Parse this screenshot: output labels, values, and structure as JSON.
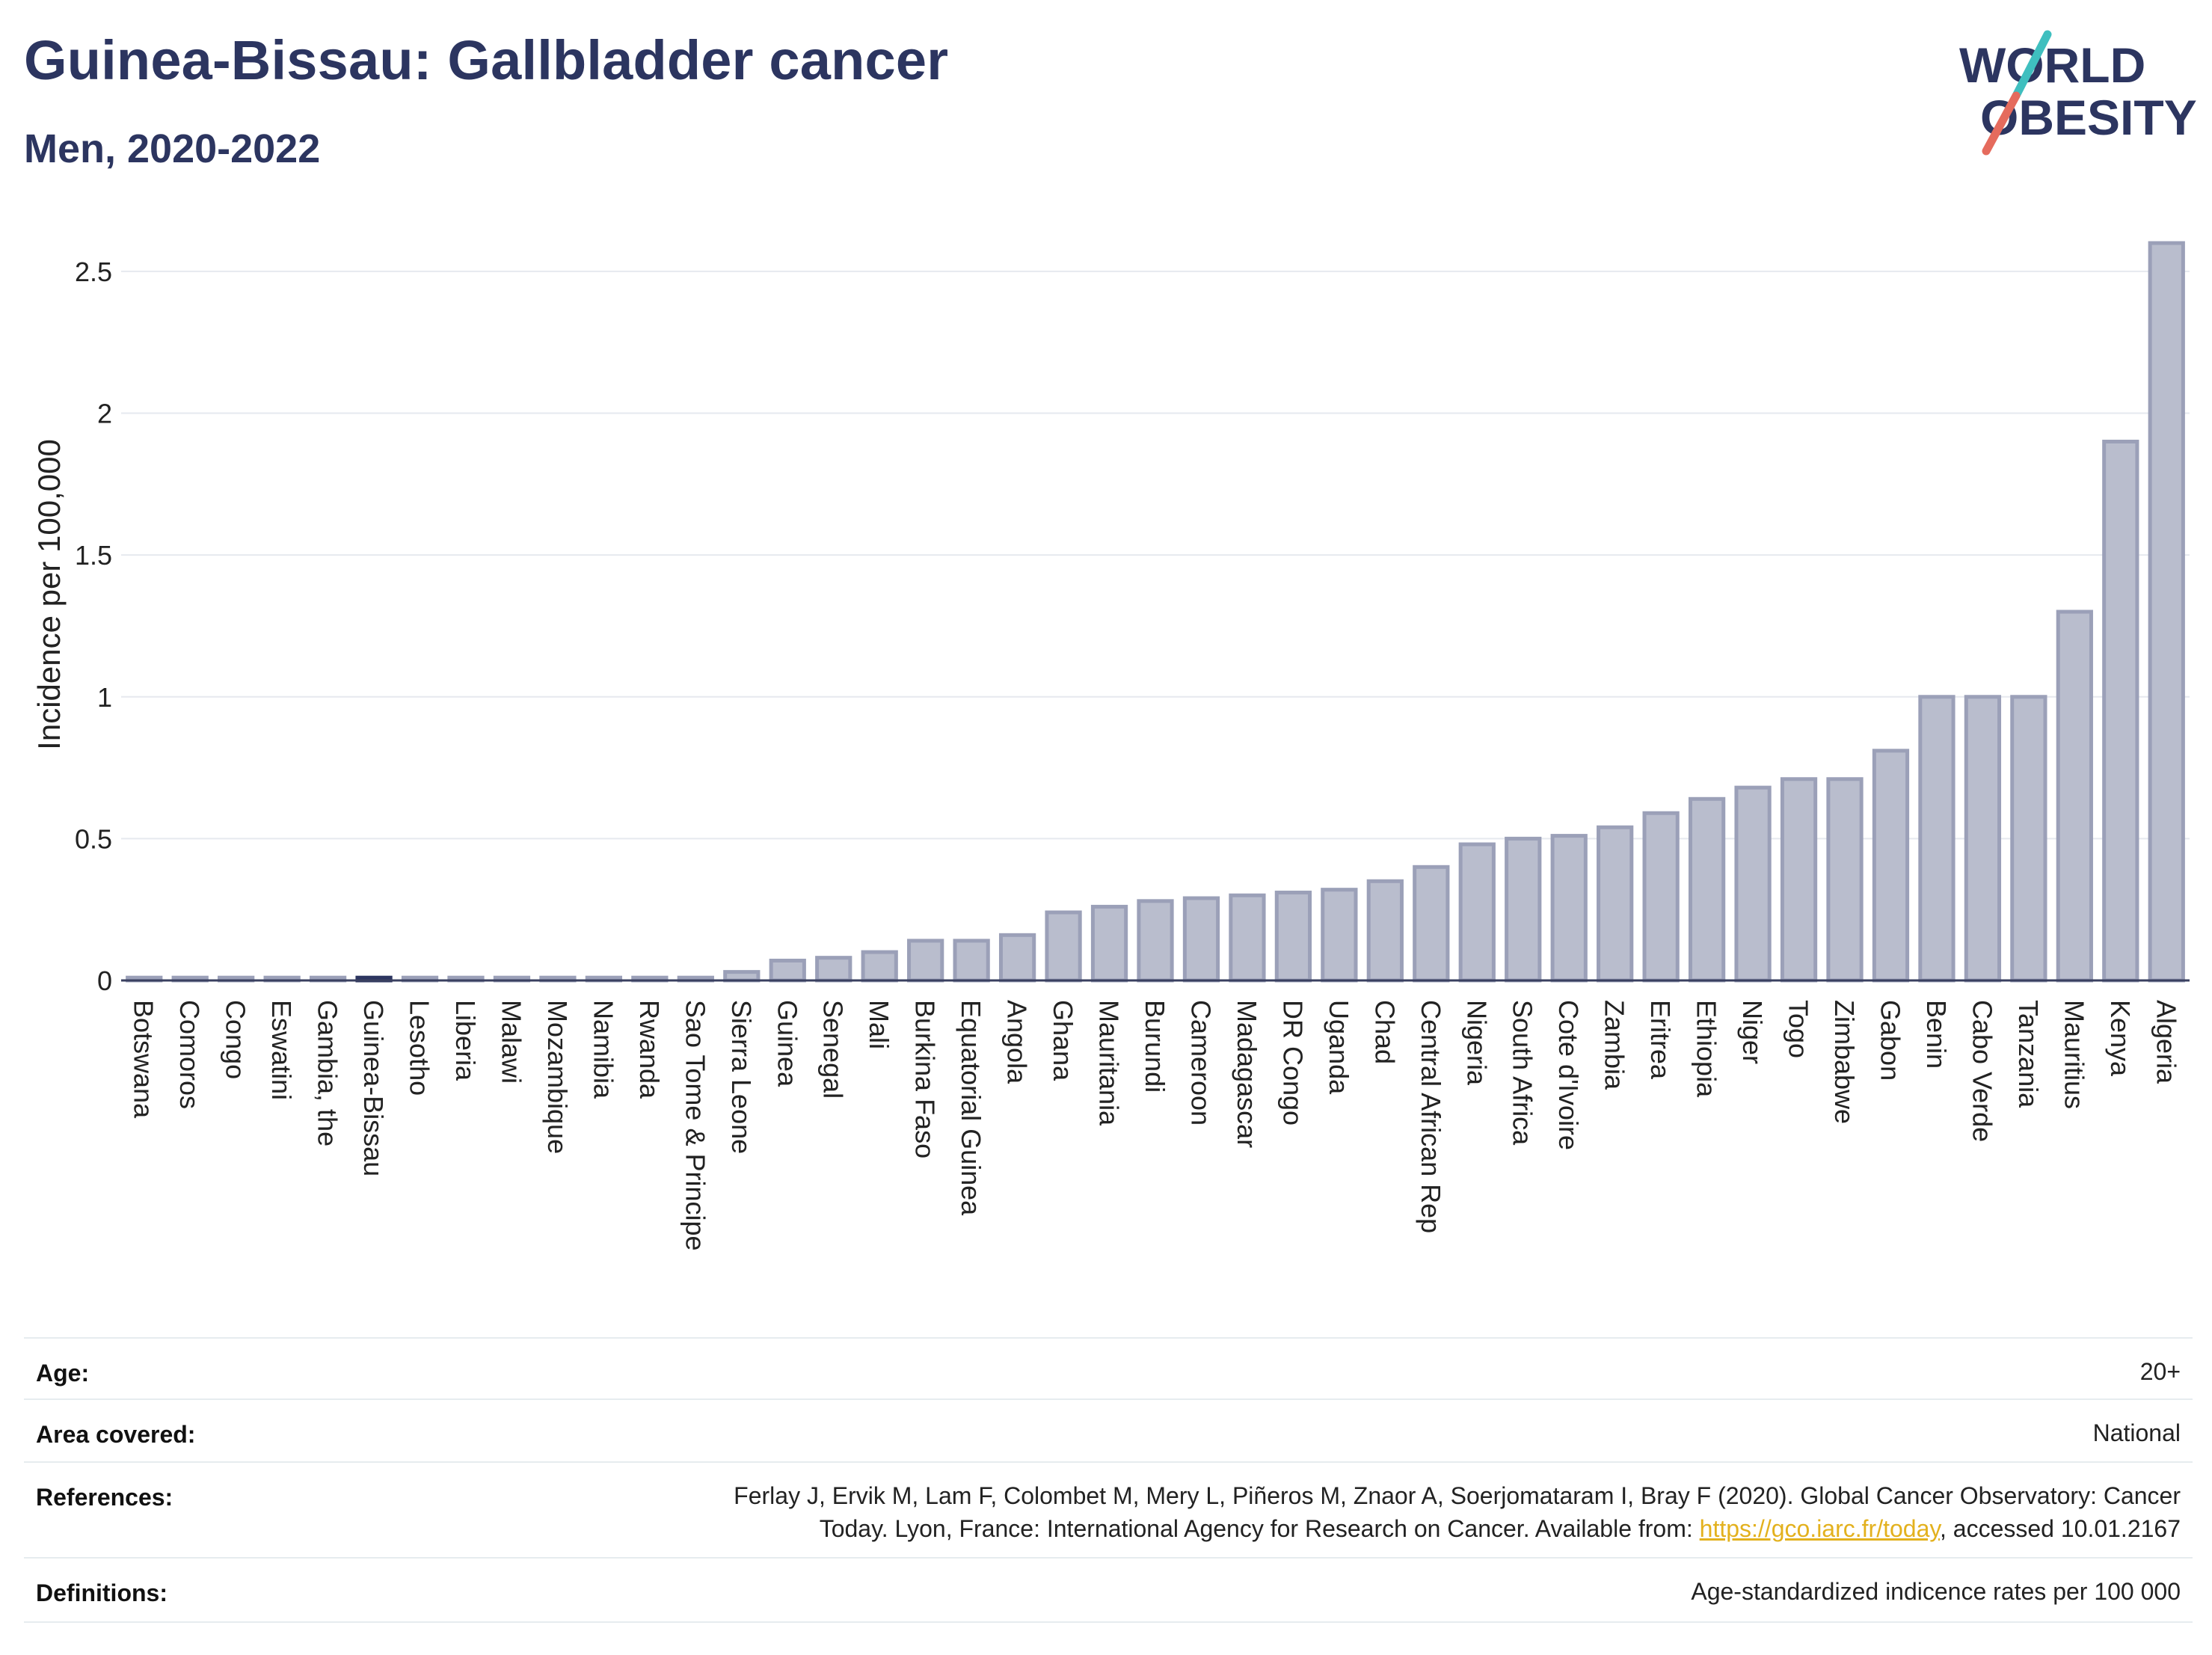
{
  "header": {
    "title": "Guinea-Bissau: Gallbladder cancer",
    "subtitle": "Men, 2020-2022",
    "logo_text_top": "WORLD",
    "logo_text_bottom": "OBESITY"
  },
  "colors": {
    "bar_fill": "#b9bdcd",
    "bar_stroke": "#9ba0b8",
    "highlight": "#2c3560",
    "title": "#2c3560",
    "grid": "#e6e9ef",
    "link": "#e3b11e",
    "logo_teal": "#3fbfbf",
    "logo_coral": "#e56b5d"
  },
  "chart_data": {
    "type": "bar",
    "title": "Guinea-Bissau: Gallbladder cancer",
    "subtitle": "Men, 2020-2022",
    "ylabel": "Incidence per 100,000",
    "xlabel": "",
    "ylim": [
      0,
      2.6
    ],
    "yticks": [
      "0",
      "0.5",
      "1",
      "1.5",
      "2",
      "2.5"
    ],
    "highlight": "Guinea-Bissau",
    "categories": [
      "Botswana",
      "Comoros",
      "Congo",
      "Eswatini",
      "Gambia, the",
      "Guinea-Bissau",
      "Lesotho",
      "Liberia",
      "Malawi",
      "Mozambique",
      "Namibia",
      "Rwanda",
      "Sao Tome & Principe",
      "Sierra Leone",
      "Guinea",
      "Senegal",
      "Mali",
      "Burkina Faso",
      "Equatorial Guinea",
      "Angola",
      "Ghana",
      "Mauritania",
      "Burundi",
      "Cameroon",
      "Madagascar",
      "DR Congo",
      "Uganda",
      "Chad",
      "Central African Rep",
      "Nigeria",
      "South Africa",
      "Cote d'Ivoire",
      "Zambia",
      "Eritrea",
      "Ethiopia",
      "Niger",
      "Togo",
      "Zimbabwe",
      "Gabon",
      "Benin",
      "Cabo Verde",
      "Tanzania",
      "Mauritius",
      "Kenya",
      "Algeria"
    ],
    "values": [
      0.01,
      0.01,
      0.01,
      0.01,
      0.01,
      0.01,
      0.01,
      0.01,
      0.01,
      0.01,
      0.01,
      0.01,
      0.01,
      0.03,
      0.07,
      0.08,
      0.1,
      0.14,
      0.14,
      0.16,
      0.24,
      0.26,
      0.28,
      0.29,
      0.3,
      0.31,
      0.32,
      0.35,
      0.4,
      0.48,
      0.5,
      0.51,
      0.54,
      0.59,
      0.64,
      0.68,
      0.71,
      0.71,
      0.81,
      1.0,
      1.0,
      1.0,
      1.3,
      1.9,
      2.6
    ],
    "grid": true
  },
  "meta": {
    "rows": [
      {
        "key": "Age:",
        "value": "20+"
      },
      {
        "key": "Area covered:",
        "value": "National"
      },
      {
        "key": "References:",
        "value_line1": "Ferlay J, Ervik M, Lam F, Colombet M, Mery L, Piñeros M, Znaor A, Soerjomataram I, Bray F (2020). Global Cancer Observatory: Cancer",
        "value_line2_pre": "Today. Lyon, France: International Agency for Research on Cancer. Available from: ",
        "link": "https://gco.iarc.fr/today",
        "value_line2_post": ", accessed 10.01.2167"
      },
      {
        "key": "Definitions:",
        "value": "Age-standardized indicence rates per 100 000"
      }
    ]
  }
}
